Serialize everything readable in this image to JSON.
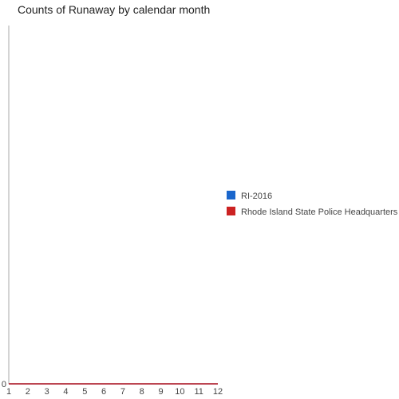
{
  "chart_data": {
    "type": "line",
    "title": "Counts of Runaway by calendar month",
    "x": [
      1,
      2,
      3,
      4,
      5,
      6,
      7,
      8,
      9,
      10,
      11,
      12
    ],
    "xlim": [
      1,
      12
    ],
    "ylim": [
      0,
      1
    ],
    "y_ticks": [
      0
    ],
    "series": [
      {
        "name": "RI-2016",
        "color": "#1a66cc",
        "values": [
          0,
          0,
          0,
          0,
          0,
          0,
          0,
          0,
          0,
          0,
          0,
          0
        ]
      },
      {
        "name": "Rhode Island State Police Headquarters",
        "color": "#cc2222",
        "values": [
          0,
          0,
          0,
          0,
          0,
          0,
          0,
          0,
          0,
          0,
          0,
          0
        ]
      }
    ],
    "legend_position": "right",
    "grid": false
  }
}
